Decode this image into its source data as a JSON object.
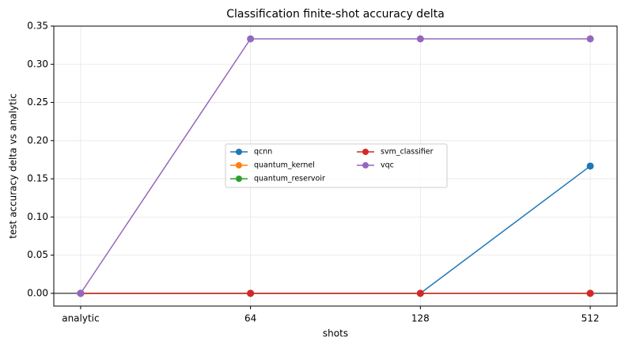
{
  "chart_data": {
    "type": "line",
    "title": "Classification finite-shot accuracy delta",
    "x_label": "shots",
    "y_label": "test accuracy delta vs analytic",
    "categories": [
      "analytic",
      "64",
      "128",
      "512"
    ],
    "series": [
      {
        "name": "qcnn",
        "color": "#1f77b4",
        "values": [
          0,
          0,
          0,
          0.1667
        ]
      },
      {
        "name": "quantum_kernel",
        "color": "#ff7f0e",
        "values": [
          0,
          0,
          0,
          0
        ]
      },
      {
        "name": "quantum_reservoir",
        "color": "#2ca02c",
        "values": [
          0,
          0,
          0,
          0
        ]
      },
      {
        "name": "svm_classifier",
        "color": "#d62728",
        "values": [
          0,
          0,
          0,
          0
        ]
      },
      {
        "name": "vqc",
        "color": "#9467bd",
        "values": [
          0,
          0.3333,
          0.3333,
          0.3333
        ]
      }
    ],
    "ylim": [
      -0.0167,
      0.35
    ],
    "yticks": [
      {
        "value": 0,
        "label": "0.00"
      },
      {
        "value": 0.05,
        "label": "0.05"
      },
      {
        "value": 0.1,
        "label": "0.10"
      },
      {
        "value": 0.15,
        "label": "0.15"
      },
      {
        "value": 0.2,
        "label": "0.20"
      },
      {
        "value": 0.25,
        "label": "0.25"
      },
      {
        "value": 0.3,
        "label": "0.30"
      },
      {
        "value": 0.35,
        "label": "0.35"
      }
    ],
    "reference_line": 0,
    "grid": true,
    "legend_position": "center",
    "legend_columns": 2
  }
}
